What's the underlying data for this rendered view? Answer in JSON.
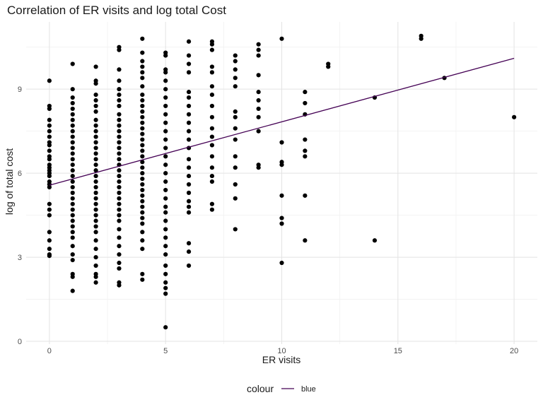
{
  "chart_data": {
    "type": "scatter",
    "title": "Correlation of ER visits and log total Cost",
    "xlabel": "ER visits",
    "ylabel": "log of total cost",
    "xlim": [
      -1,
      21
    ],
    "ylim": [
      -0.1,
      11.4
    ],
    "x_ticks": [
      0,
      5,
      10,
      15,
      20
    ],
    "y_ticks": [
      0,
      3,
      6,
      9
    ],
    "grid": true,
    "legend": {
      "title": "colour",
      "entries": [
        {
          "label": "blue",
          "color": "#440154"
        }
      ],
      "placement": "bottom"
    },
    "series": [
      {
        "kind": "points",
        "color": "#000000",
        "points": [
          [
            0,
            9.3
          ],
          [
            0,
            8.4
          ],
          [
            0,
            8.3
          ],
          [
            0,
            7.9
          ],
          [
            0,
            7.7
          ],
          [
            0,
            7.5
          ],
          [
            0,
            7.3
          ],
          [
            0,
            7.1
          ],
          [
            0,
            7.0
          ],
          [
            0,
            6.8
          ],
          [
            0,
            6.6
          ],
          [
            0,
            6.5
          ],
          [
            0,
            6.3
          ],
          [
            0,
            6.2
          ],
          [
            0,
            6.1
          ],
          [
            0,
            6.0
          ],
          [
            0,
            5.9
          ],
          [
            0,
            5.7
          ],
          [
            0,
            5.6
          ],
          [
            0,
            5.5
          ],
          [
            0,
            4.9
          ],
          [
            0,
            4.7
          ],
          [
            0,
            4.5
          ],
          [
            0,
            3.9
          ],
          [
            0,
            3.6
          ],
          [
            0,
            3.3
          ],
          [
            0,
            3.1
          ],
          [
            0,
            3.05
          ],
          [
            1,
            9.9
          ],
          [
            1,
            9.0
          ],
          [
            1,
            8.7
          ],
          [
            1,
            8.5
          ],
          [
            1,
            8.3
          ],
          [
            1,
            8.1
          ],
          [
            1,
            7.9
          ],
          [
            1,
            7.7
          ],
          [
            1,
            7.5
          ],
          [
            1,
            7.3
          ],
          [
            1,
            7.1
          ],
          [
            1,
            6.9
          ],
          [
            1,
            6.7
          ],
          [
            1,
            6.5
          ],
          [
            1,
            6.3
          ],
          [
            1,
            6.1
          ],
          [
            1,
            5.9
          ],
          [
            1,
            5.7
          ],
          [
            1,
            5.5
          ],
          [
            1,
            5.3
          ],
          [
            1,
            5.1
          ],
          [
            1,
            4.9
          ],
          [
            1,
            4.7
          ],
          [
            1,
            4.5
          ],
          [
            1,
            4.3
          ],
          [
            1,
            4.1
          ],
          [
            1,
            3.9
          ],
          [
            1,
            3.7
          ],
          [
            1,
            3.4
          ],
          [
            1,
            3.1
          ],
          [
            1,
            2.9
          ],
          [
            1,
            2.4
          ],
          [
            1,
            2.3
          ],
          [
            1,
            1.8
          ],
          [
            2,
            9.8
          ],
          [
            2,
            9.3
          ],
          [
            2,
            9.2
          ],
          [
            2,
            8.8
          ],
          [
            2,
            8.6
          ],
          [
            2,
            8.4
          ],
          [
            2,
            8.2
          ],
          [
            2,
            7.9
          ],
          [
            2,
            7.7
          ],
          [
            2,
            7.5
          ],
          [
            2,
            7.3
          ],
          [
            2,
            7.1
          ],
          [
            2,
            6.9
          ],
          [
            2,
            6.7
          ],
          [
            2,
            6.5
          ],
          [
            2,
            6.3
          ],
          [
            2,
            6.1
          ],
          [
            2,
            5.9
          ],
          [
            2,
            5.7
          ],
          [
            2,
            5.5
          ],
          [
            2,
            5.3
          ],
          [
            2,
            5.1
          ],
          [
            2,
            4.9
          ],
          [
            2,
            4.7
          ],
          [
            2,
            4.5
          ],
          [
            2,
            4.3
          ],
          [
            2,
            4.1
          ],
          [
            2,
            3.9
          ],
          [
            2,
            3.6
          ],
          [
            2,
            3.3
          ],
          [
            2,
            3.0
          ],
          [
            2,
            2.7
          ],
          [
            2,
            2.4
          ],
          [
            2,
            2.3
          ],
          [
            2,
            2.1
          ],
          [
            3,
            10.5
          ],
          [
            3,
            10.4
          ],
          [
            3,
            9.7
          ],
          [
            3,
            9.3
          ],
          [
            3,
            9.0
          ],
          [
            3,
            8.8
          ],
          [
            3,
            8.6
          ],
          [
            3,
            8.4
          ],
          [
            3,
            8.1
          ],
          [
            3,
            7.9
          ],
          [
            3,
            7.7
          ],
          [
            3,
            7.5
          ],
          [
            3,
            7.3
          ],
          [
            3,
            7.1
          ],
          [
            3,
            6.9
          ],
          [
            3,
            6.7
          ],
          [
            3,
            6.5
          ],
          [
            3,
            6.3
          ],
          [
            3,
            6.1
          ],
          [
            3,
            5.9
          ],
          [
            3,
            5.7
          ],
          [
            3,
            5.5
          ],
          [
            3,
            5.3
          ],
          [
            3,
            5.1
          ],
          [
            3,
            4.9
          ],
          [
            3,
            4.7
          ],
          [
            3,
            4.5
          ],
          [
            3,
            4.3
          ],
          [
            3,
            4.0
          ],
          [
            3,
            3.7
          ],
          [
            3,
            3.4
          ],
          [
            3,
            3.1
          ],
          [
            3,
            2.8
          ],
          [
            3,
            2.6
          ],
          [
            3,
            2.1
          ],
          [
            3,
            2.0
          ],
          [
            4,
            10.8
          ],
          [
            4,
            10.3
          ],
          [
            4,
            10.0
          ],
          [
            4,
            9.8
          ],
          [
            4,
            9.6
          ],
          [
            4,
            9.4
          ],
          [
            4,
            9.1
          ],
          [
            4,
            8.8
          ],
          [
            4,
            8.6
          ],
          [
            4,
            8.4
          ],
          [
            4,
            8.2
          ],
          [
            4,
            8.0
          ],
          [
            4,
            7.8
          ],
          [
            4,
            7.6
          ],
          [
            4,
            7.4
          ],
          [
            4,
            7.2
          ],
          [
            4,
            7.0
          ],
          [
            4,
            6.8
          ],
          [
            4,
            6.6
          ],
          [
            4,
            6.4
          ],
          [
            4,
            6.2
          ],
          [
            4,
            6.0
          ],
          [
            4,
            5.8
          ],
          [
            4,
            5.6
          ],
          [
            4,
            5.4
          ],
          [
            4,
            5.2
          ],
          [
            4,
            5.0
          ],
          [
            4,
            4.8
          ],
          [
            4,
            4.6
          ],
          [
            4,
            4.4
          ],
          [
            4,
            4.2
          ],
          [
            4,
            3.9
          ],
          [
            4,
            3.6
          ],
          [
            4,
            3.3
          ],
          [
            4,
            2.4
          ],
          [
            4,
            2.2
          ],
          [
            5,
            10.3
          ],
          [
            5,
            10.2
          ],
          [
            5,
            9.7
          ],
          [
            5,
            9.6
          ],
          [
            5,
            9.3
          ],
          [
            5,
            9.0
          ],
          [
            5,
            8.7
          ],
          [
            5,
            8.4
          ],
          [
            5,
            8.1
          ],
          [
            5,
            7.8
          ],
          [
            5,
            7.5
          ],
          [
            5,
            7.2
          ],
          [
            5,
            6.9
          ],
          [
            5,
            6.6
          ],
          [
            5,
            6.3
          ],
          [
            5,
            6.0
          ],
          [
            5,
            5.7
          ],
          [
            5,
            5.4
          ],
          [
            5,
            5.1
          ],
          [
            5,
            4.8
          ],
          [
            5,
            4.6
          ],
          [
            5,
            4.3
          ],
          [
            5,
            4.0
          ],
          [
            5,
            3.7
          ],
          [
            5,
            3.4
          ],
          [
            5,
            3.1
          ],
          [
            5,
            2.7
          ],
          [
            5,
            2.4
          ],
          [
            5,
            2.1
          ],
          [
            5,
            1.9
          ],
          [
            5,
            1.7
          ],
          [
            5,
            0.5
          ],
          [
            6,
            10.7
          ],
          [
            6,
            10.2
          ],
          [
            6,
            9.9
          ],
          [
            6,
            9.6
          ],
          [
            6,
            8.9
          ],
          [
            6,
            8.7
          ],
          [
            6,
            8.4
          ],
          [
            6,
            8.1
          ],
          [
            6,
            7.8
          ],
          [
            6,
            7.5
          ],
          [
            6,
            7.2
          ],
          [
            6,
            6.9
          ],
          [
            6,
            6.5
          ],
          [
            6,
            6.2
          ],
          [
            6,
            5.9
          ],
          [
            6,
            5.6
          ],
          [
            6,
            5.3
          ],
          [
            6,
            5.0
          ],
          [
            6,
            4.8
          ],
          [
            6,
            4.6
          ],
          [
            6,
            3.5
          ],
          [
            6,
            3.2
          ],
          [
            6,
            2.7
          ],
          [
            7,
            10.7
          ],
          [
            7,
            10.6
          ],
          [
            7,
            10.4
          ],
          [
            7,
            9.8
          ],
          [
            7,
            9.6
          ],
          [
            7,
            9.1
          ],
          [
            7,
            8.8
          ],
          [
            7,
            8.4
          ],
          [
            7,
            8.0
          ],
          [
            7,
            7.6
          ],
          [
            7,
            7.3
          ],
          [
            7,
            7.0
          ],
          [
            7,
            6.6
          ],
          [
            7,
            6.2
          ],
          [
            7,
            5.9
          ],
          [
            7,
            5.7
          ],
          [
            7,
            4.9
          ],
          [
            7,
            4.7
          ],
          [
            8,
            10.2
          ],
          [
            8,
            10.0
          ],
          [
            8,
            9.7
          ],
          [
            8,
            9.4
          ],
          [
            8,
            9.1
          ],
          [
            8,
            8.2
          ],
          [
            8,
            8.0
          ],
          [
            8,
            7.6
          ],
          [
            8,
            7.2
          ],
          [
            8,
            6.6
          ],
          [
            8,
            6.2
          ],
          [
            8,
            5.6
          ],
          [
            8,
            5.1
          ],
          [
            8,
            4.0
          ],
          [
            9,
            10.6
          ],
          [
            9,
            10.4
          ],
          [
            9,
            10.2
          ],
          [
            9,
            9.5
          ],
          [
            9,
            8.9
          ],
          [
            9,
            8.6
          ],
          [
            9,
            8.3
          ],
          [
            9,
            8.0
          ],
          [
            9,
            7.5
          ],
          [
            9,
            6.3
          ],
          [
            9,
            6.2
          ],
          [
            10,
            10.8
          ],
          [
            10,
            7.1
          ],
          [
            10,
            6.4
          ],
          [
            10,
            6.3
          ],
          [
            10,
            5.2
          ],
          [
            10,
            4.4
          ],
          [
            10,
            4.2
          ],
          [
            10,
            2.8
          ],
          [
            11,
            8.9
          ],
          [
            11,
            8.5
          ],
          [
            11,
            8.1
          ],
          [
            11,
            7.2
          ],
          [
            11,
            6.8
          ],
          [
            11,
            6.6
          ],
          [
            11,
            5.2
          ],
          [
            11,
            3.6
          ],
          [
            12,
            9.9
          ],
          [
            12,
            9.8
          ],
          [
            14,
            8.7
          ],
          [
            14,
            3.6
          ],
          [
            16,
            10.9
          ],
          [
            16,
            10.8
          ],
          [
            17,
            9.4
          ],
          [
            20,
            8.0
          ]
        ]
      },
      {
        "kind": "line",
        "name": "blue",
        "color": "#440154",
        "points": [
          [
            0,
            5.57
          ],
          [
            20,
            10.1
          ]
        ]
      }
    ]
  }
}
